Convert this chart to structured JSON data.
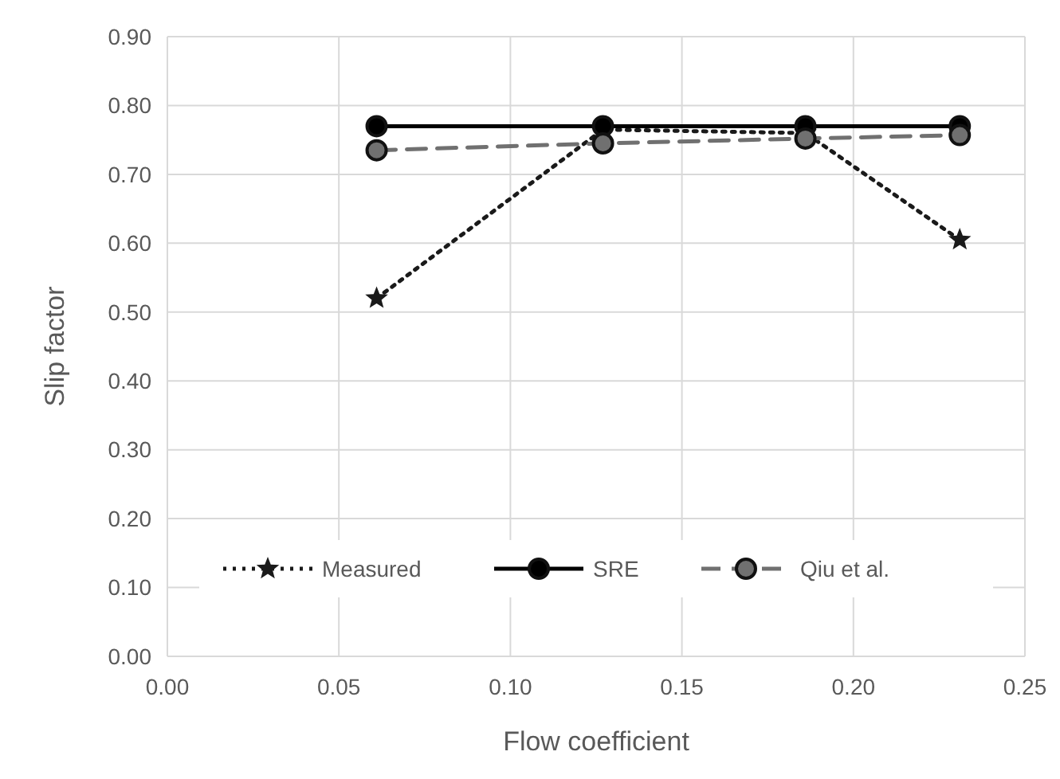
{
  "chart_data": {
    "type": "line",
    "xlabel": "Flow coefficient",
    "ylabel": "Slip factor",
    "xlim": [
      0,
      0.25
    ],
    "xticks": [
      {
        "value": 0,
        "label": "0.00"
      },
      {
        "value": 0.05,
        "label": "0.05"
      },
      {
        "value": 0.1,
        "label": "0.10"
      },
      {
        "value": 0.15,
        "label": "0.15"
      },
      {
        "value": 0.2,
        "label": "0.20"
      },
      {
        "value": 0.25,
        "label": "0.25"
      }
    ],
    "ylim": [
      0,
      0.9
    ],
    "yticks": [
      {
        "value": 0,
        "label": "0.00"
      },
      {
        "value": 0.1,
        "label": "0.10"
      },
      {
        "value": 0.2,
        "label": "0.20"
      },
      {
        "value": 0.3,
        "label": "0.30"
      },
      {
        "value": 0.4,
        "label": "0.40"
      },
      {
        "value": 0.5,
        "label": "0.50"
      },
      {
        "value": 0.6,
        "label": "0.60"
      },
      {
        "value": 0.7,
        "label": "0.70"
      },
      {
        "value": 0.8,
        "label": "0.80"
      },
      {
        "value": 0.9,
        "label": "0.90"
      }
    ],
    "grid": true,
    "legend": "bottom",
    "x": [
      0.061,
      0.127,
      0.186,
      0.231
    ],
    "series": [
      {
        "name": "Measured",
        "color": "#1a1a1a",
        "marker": "star",
        "line_style": "dotted",
        "values": [
          0.52,
          0.765,
          0.76,
          0.605
        ]
      },
      {
        "name": "SRE",
        "color": "#000000",
        "marker": "circle",
        "line_style": "solid",
        "values": [
          0.77,
          0.77,
          0.77,
          0.77
        ]
      },
      {
        "name": "Qiu et al.",
        "color": "#707070",
        "marker": "circle",
        "line_style": "dashed",
        "values": [
          0.735,
          0.745,
          0.752,
          0.757
        ]
      }
    ]
  }
}
